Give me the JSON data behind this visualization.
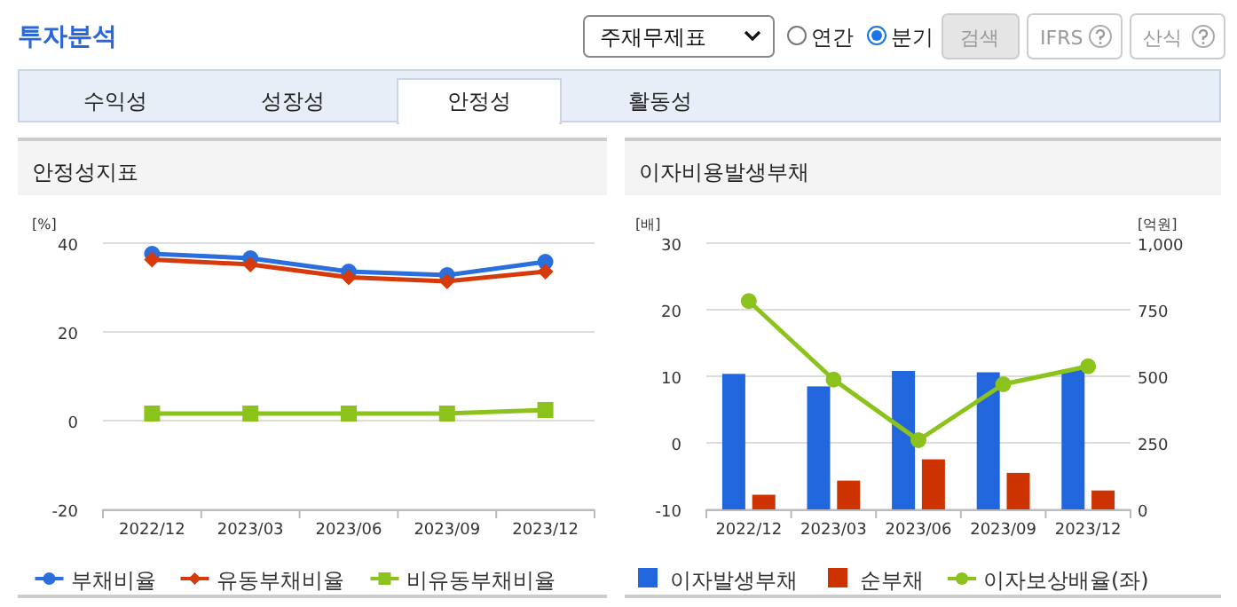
{
  "chart_data": [
    {
      "type": "other",
      "title": "투자분석",
      "annotations": [
        "주재무제표",
        "연간",
        "분기",
        "검색",
        "IFRS",
        "산식",
        "수익성",
        "성장성",
        "안정성",
        "활동성"
      ]
    },
    {
      "type": "line",
      "title": "안정성지표",
      "ylabel": "[%]",
      "categories": [
        "2022/12",
        "2023/03",
        "2023/06",
        "2023/09",
        "2023/12"
      ],
      "ylim": [
        -20,
        40
      ],
      "yticks": [
        -20,
        0,
        20,
        40
      ],
      "grid": "y",
      "legend": "bottom",
      "series": [
        {
          "name": "부채비율",
          "color": "#2a6fdb",
          "marker": "circle",
          "values": [
            37.6,
            36.6,
            33.6,
            32.8,
            35.8
          ]
        },
        {
          "name": "유동부채비율",
          "color": "#d63a0b",
          "marker": "diamond",
          "values": [
            36.3,
            35.2,
            32.3,
            31.4,
            33.6
          ]
        },
        {
          "name": "비유동부채비율",
          "color": "#8cc21c",
          "marker": "square",
          "values": [
            1.6,
            1.6,
            1.6,
            1.6,
            2.4
          ]
        }
      ]
    },
    {
      "type": "bar",
      "title": "이자비용발생부채",
      "ylabel": "[배]",
      "y2label": "[억원]",
      "categories": [
        "2022/12",
        "2023/03",
        "2023/06",
        "2023/09",
        "2023/12"
      ],
      "ylim": [
        -10,
        30
      ],
      "yticks": [
        -10,
        0,
        10,
        20,
        30
      ],
      "y2lim": [
        0,
        1000
      ],
      "y2ticks": [
        0,
        250,
        500,
        750,
        {
          "value": 1000,
          "label": "1,000"
        }
      ],
      "grid": "y",
      "legend": "bottom",
      "series": [
        {
          "name": "이자발생부채",
          "color": "#2266dd",
          "axis": "y2",
          "values": [
            509,
            462,
            520,
            515,
            524
          ]
        },
        {
          "name": "순부채",
          "color": "#cc3300",
          "axis": "y2",
          "values": [
            55,
            108,
            188,
            137,
            71
          ]
        },
        {
          "name": "이자보상배율(좌)",
          "type": "line",
          "color": "#8cc21c",
          "marker": "circle",
          "values": [
            21.3,
            9.5,
            0.4,
            8.8,
            11.5
          ]
        }
      ]
    }
  ]
}
